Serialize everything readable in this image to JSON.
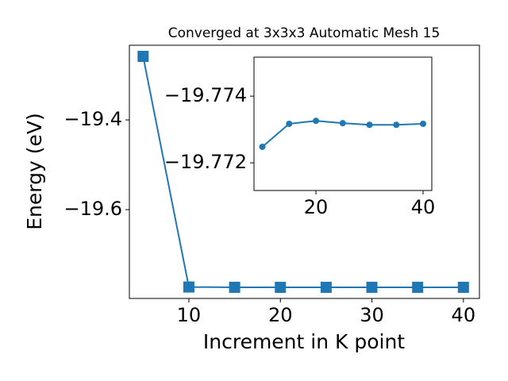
{
  "chart_data": [
    {
      "type": "line",
      "title": "Converged at 3x3x3 Automatic Mesh 15",
      "x_label": "Increment in K point",
      "y_label": "Energy (eV)",
      "x": [
        5,
        10,
        15,
        20,
        25,
        30,
        35,
        40
      ],
      "series": [
        {
          "color": "#1f77b4",
          "marker": "square",
          "values": [
            -19.2584,
            -19.77248,
            -19.77317,
            -19.77326,
            -19.77319,
            -19.77314,
            -19.77314,
            -19.77317
          ]
        }
      ],
      "xlim": [
        3.5,
        41.75
      ],
      "ylim": [
        -19.798,
        -19.2336
      ],
      "xticks": [
        10,
        20,
        30,
        40
      ],
      "yticks": [
        {
          "value": -19.4,
          "label": "−19.4"
        },
        {
          "value": -19.6,
          "label": "−19.6"
        }
      ],
      "grid": false
    },
    {
      "type": "line",
      "x": [
        10,
        15,
        20,
        25,
        30,
        35,
        40
      ],
      "series": [
        {
          "color": "#1f77b4",
          "marker": "circle",
          "values": [
            -19.77248,
            -19.77317,
            -19.77326,
            -19.77319,
            -19.77314,
            -19.77314,
            -19.77317
          ]
        }
      ],
      "xlim": [
        8.44,
        41.63
      ],
      "ylim": [
        -19.77117,
        -19.77517
      ],
      "xticks": [
        20,
        40
      ],
      "yticks": [
        {
          "value": -19.774,
          "label": "−19.774"
        },
        {
          "value": -19.772,
          "label": "−19.772"
        }
      ],
      "grid": false
    }
  ]
}
